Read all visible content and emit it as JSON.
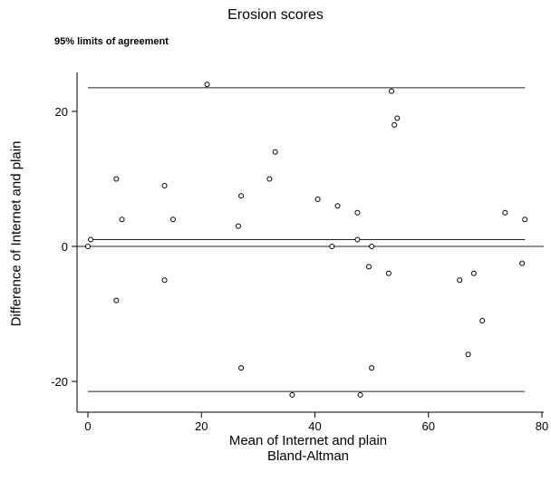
{
  "chart_data": {
    "type": "scatter",
    "title": "Erosion scores",
    "subtitle": "95% limits of agreement",
    "xlabel": "Mean of Internet and plain",
    "ylabel": "Difference of Internet and plain",
    "caption": "Bland-Altman",
    "xlim": [
      0,
      80
    ],
    "ylim": [
      -25,
      25
    ],
    "xticks": [
      0,
      20,
      40,
      60,
      80
    ],
    "yticks": [
      -20,
      0,
      20
    ],
    "grid": false,
    "reference_lines": {
      "zero": 0,
      "mean_difference": 1,
      "upper_limit": 23.5,
      "lower_limit": -21.5
    },
    "points": [
      {
        "x": 0,
        "y": 0
      },
      {
        "x": 0.5,
        "y": 1
      },
      {
        "x": 5,
        "y": 10
      },
      {
        "x": 6,
        "y": 4
      },
      {
        "x": 5,
        "y": -8
      },
      {
        "x": 13.5,
        "y": 9
      },
      {
        "x": 15,
        "y": 4
      },
      {
        "x": 13.5,
        "y": -5
      },
      {
        "x": 21,
        "y": 24
      },
      {
        "x": 26.5,
        "y": 3
      },
      {
        "x": 27,
        "y": 7.5
      },
      {
        "x": 27,
        "y": -18
      },
      {
        "x": 32,
        "y": 10
      },
      {
        "x": 33,
        "y": 14
      },
      {
        "x": 36,
        "y": -22
      },
      {
        "x": 40.5,
        "y": 7
      },
      {
        "x": 43,
        "y": 0
      },
      {
        "x": 44,
        "y": 6
      },
      {
        "x": 47.5,
        "y": 5
      },
      {
        "x": 47.5,
        "y": 1
      },
      {
        "x": 48,
        "y": -22
      },
      {
        "x": 49.5,
        "y": -3
      },
      {
        "x": 50,
        "y": 0
      },
      {
        "x": 50,
        "y": -18
      },
      {
        "x": 53,
        "y": -4
      },
      {
        "x": 53.5,
        "y": 23
      },
      {
        "x": 54,
        "y": 18
      },
      {
        "x": 54.5,
        "y": 19
      },
      {
        "x": 65.5,
        "y": -5
      },
      {
        "x": 67,
        "y": -16
      },
      {
        "x": 68,
        "y": -4
      },
      {
        "x": 69.5,
        "y": -11
      },
      {
        "x": 73.5,
        "y": 5
      },
      {
        "x": 76.5,
        "y": -2.5
      },
      {
        "x": 77,
        "y": 4
      }
    ]
  }
}
